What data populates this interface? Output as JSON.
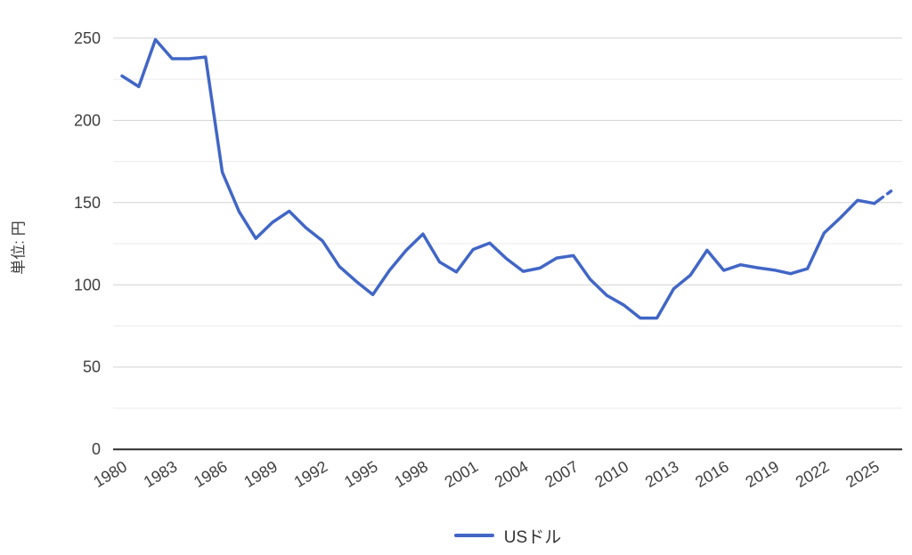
{
  "chart_data": {
    "type": "line",
    "title": "",
    "xlabel": "",
    "ylabel": "単位: 円",
    "ylim": [
      0,
      250
    ],
    "y_major_ticks": [
      0,
      50,
      100,
      150,
      200,
      250
    ],
    "y_minor_gridlines": [
      25,
      75,
      125,
      175,
      225
    ],
    "x_tick_years": [
      1980,
      1983,
      1986,
      1989,
      1992,
      1995,
      1998,
      2001,
      2004,
      2007,
      2010,
      2013,
      2016,
      2019,
      2022,
      2025
    ],
    "grid": true,
    "legend_position": "bottom",
    "x": [
      1980,
      1981,
      1982,
      1983,
      1984,
      1985,
      1986,
      1987,
      1988,
      1989,
      1990,
      1991,
      1992,
      1993,
      1994,
      1995,
      1996,
      1997,
      1998,
      1999,
      2000,
      2001,
      2002,
      2003,
      2004,
      2005,
      2006,
      2007,
      2008,
      2009,
      2010,
      2011,
      2012,
      2013,
      2014,
      2015,
      2016,
      2017,
      2018,
      2019,
      2020,
      2021,
      2022,
      2023,
      2024,
      2025,
      2026
    ],
    "series": [
      {
        "name": "USドル",
        "color": "#4166C6",
        "final_segment": "dashed",
        "values": [
          227,
          220.5,
          249.1,
          237.5,
          237.5,
          238.5,
          168.5,
          144.6,
          128.2,
          138,
          144.8,
          134.7,
          126.7,
          111.2,
          102.2,
          94.1,
          108.8,
          121,
          130.9,
          113.9,
          107.8,
          121.5,
          125.4,
          115.9,
          108.2,
          110.2,
          116.3,
          117.8,
          103.4,
          93.6,
          87.8,
          79.8,
          79.8,
          97.6,
          105.9,
          121,
          108.8,
          112.2,
          110.4,
          109,
          106.8,
          109.8,
          131.5,
          141,
          151.4,
          149.5,
          157
        ]
      }
    ]
  },
  "colors": {
    "background": "#ffffff",
    "axis_line": "#2d2d2d",
    "gridline_major": "#d4d4d4",
    "gridline_minor": "#ebebeb",
    "tick_label": "#3f3f3f",
    "legend_text": "#333333",
    "series_blue": "#4166C6"
  }
}
